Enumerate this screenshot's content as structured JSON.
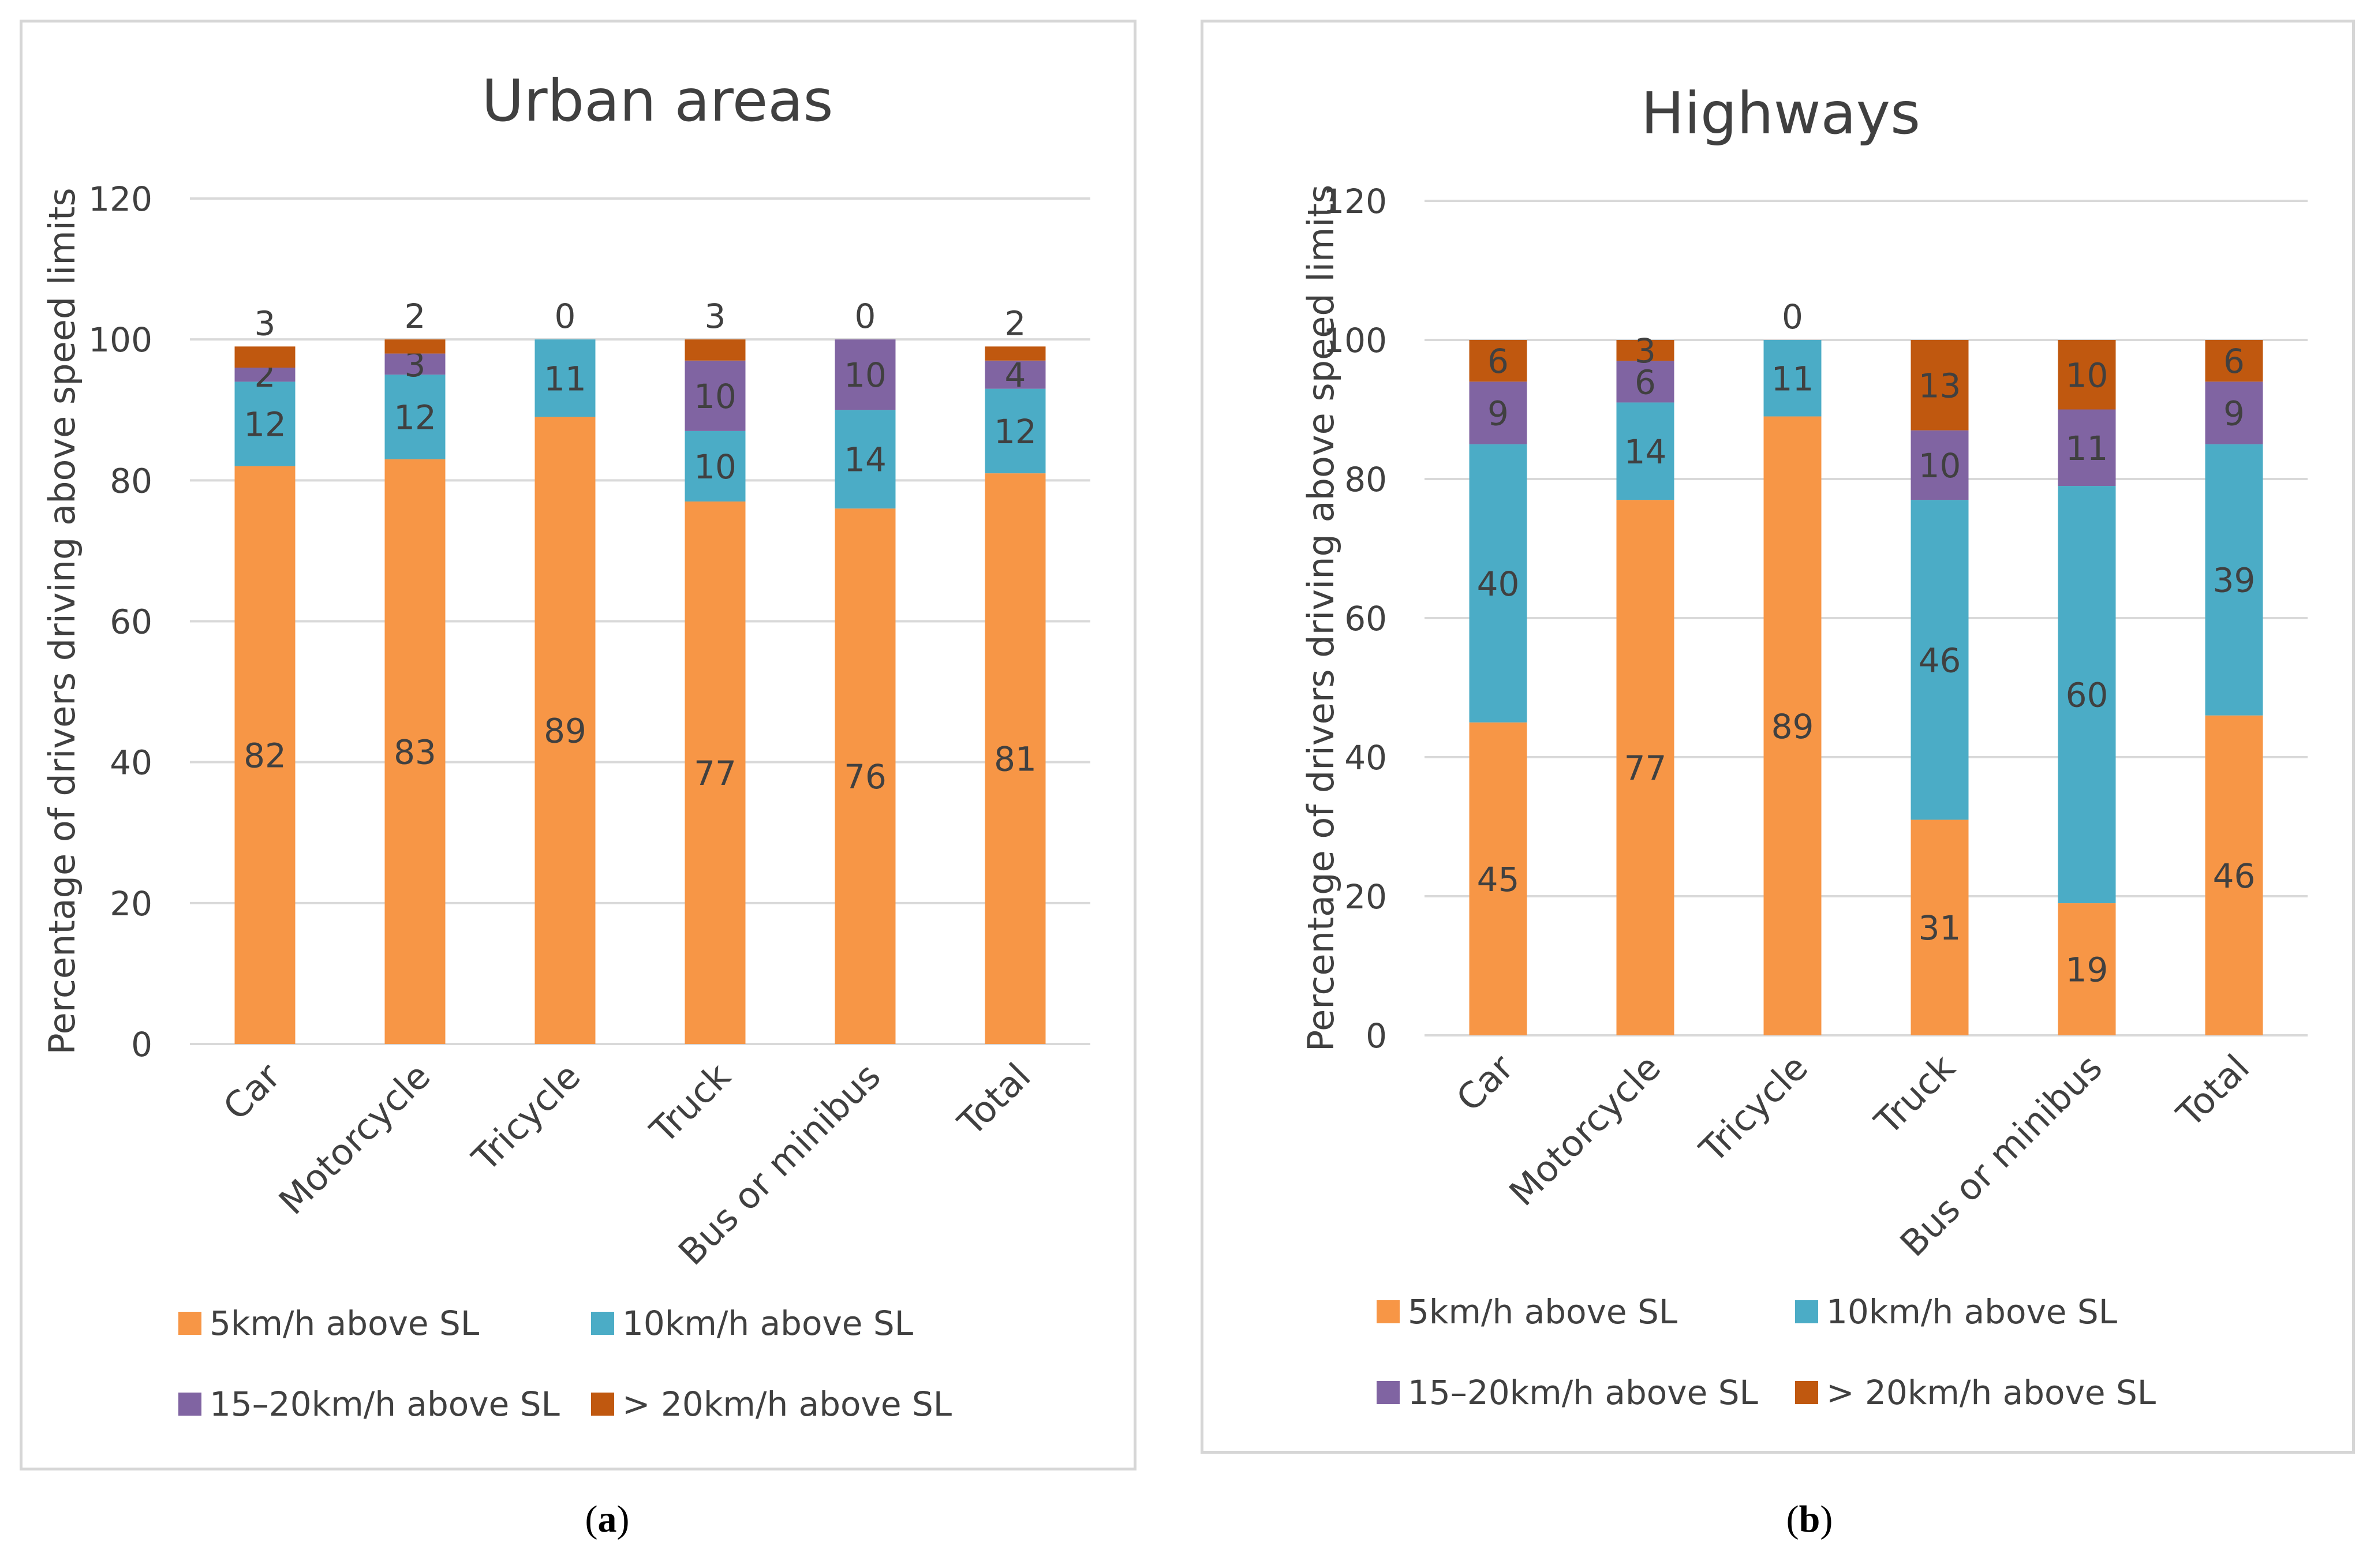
{
  "colors": {
    "s5": "#f79646",
    "s10": "#4bacc6",
    "s15": "#8064a2",
    "s20": "#c0580f",
    "grid": "#d9d9d9",
    "text": "#404040"
  },
  "captions": {
    "a_open": "(",
    "a_letter": "a",
    "a_close": ")",
    "b_open": "(",
    "b_letter": "b",
    "b_close": ")"
  },
  "legend": {
    "s5": "5km/h above SL",
    "s10": "10km/h above SL",
    "s15": "15–20km/h above SL",
    "s20": "> 20km/h above SL"
  },
  "chart_data": [
    {
      "type": "bar",
      "stacked": true,
      "title": "Urban areas",
      "xlabel": "",
      "ylabel": "Percentage of drivers driving above speed limits",
      "ylim": [
        0,
        120
      ],
      "yticks": [
        0,
        20,
        40,
        60,
        80,
        100,
        120
      ],
      "categories": [
        "Car",
        "Motorcycle",
        "Tricycle",
        "Truck",
        "Bus or minibus",
        "Total"
      ],
      "series": [
        {
          "name": "5km/h above SL",
          "key": "s5",
          "values": [
            82,
            83,
            89,
            77,
            76,
            81
          ]
        },
        {
          "name": "10km/h above SL",
          "key": "s10",
          "values": [
            12,
            12,
            11,
            10,
            14,
            12
          ]
        },
        {
          "name": "15–20km/h above SL",
          "key": "s15",
          "values": [
            2,
            3,
            0,
            10,
            10,
            4
          ]
        },
        {
          "name": "> 20km/h above SL",
          "key": "s20",
          "values": [
            3,
            2,
            0,
            3,
            0,
            2
          ]
        }
      ],
      "legend_position": "bottom"
    },
    {
      "type": "bar",
      "stacked": true,
      "title": "Highways",
      "xlabel": "",
      "ylabel": "Percentage of drivers driving above speed limits",
      "ylim": [
        0,
        120
      ],
      "yticks": [
        0,
        20,
        40,
        60,
        80,
        100,
        120
      ],
      "categories": [
        "Car",
        "Motorcycle",
        "Tricycle",
        "Truck",
        "Bus or minibus",
        "Total"
      ],
      "series": [
        {
          "name": "5km/h above SL",
          "key": "s5",
          "values": [
            45,
            77,
            89,
            31,
            19,
            46
          ]
        },
        {
          "name": "10km/h above SL",
          "key": "s10",
          "values": [
            40,
            14,
            11,
            46,
            60,
            39
          ]
        },
        {
          "name": "15–20km/h above SL",
          "key": "s15",
          "values": [
            9,
            6,
            0,
            10,
            11,
            9
          ]
        },
        {
          "name": "> 20km/h above SL",
          "key": "s20",
          "values": [
            6,
            3,
            0,
            13,
            10,
            6
          ]
        }
      ],
      "legend_position": "bottom"
    }
  ]
}
